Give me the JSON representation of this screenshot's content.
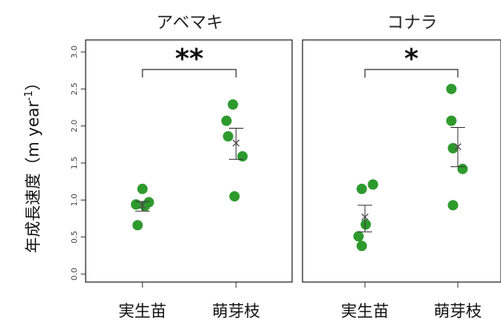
{
  "chart_data": [
    {
      "type": "scatter",
      "title": "アベマキ",
      "categories": [
        "実生苗",
        "萌芽枝"
      ],
      "ylabel_main": "年成長速度（m year",
      "ylabel_sup": "-1",
      "ylabel_close": "）",
      "ylim": [
        0,
        3.0
      ],
      "yticks": [
        0.0,
        0.5,
        1.0,
        1.5,
        2.0,
        2.5,
        3.0
      ],
      "ytick_labels": [
        "0.0",
        "0.5",
        "1.0",
        "1.5",
        "2.0",
        "2.5",
        "3.0"
      ],
      "point_color": "#2e9a2e",
      "points": [
        [
          1.15,
          0.97,
          0.94,
          0.92,
          0.66
        ],
        [
          2.29,
          2.07,
          1.86,
          1.59,
          1.05
        ]
      ],
      "mean": [
        0.93,
        1.77
      ],
      "error": [
        [
          0.85,
          0.98
        ],
        [
          1.55,
          1.97
        ]
      ],
      "significance": "**"
    },
    {
      "type": "scatter",
      "title": "コナラ",
      "categories": [
        "実生苗",
        "萌芽枝"
      ],
      "ylim": [
        0,
        3.0
      ],
      "point_color": "#2e9a2e",
      "points": [
        [
          1.21,
          1.15,
          0.67,
          0.51,
          0.38
        ],
        [
          2.5,
          2.07,
          1.7,
          1.42,
          0.93
        ]
      ],
      "mean": [
        0.77,
        1.72
      ],
      "error": [
        [
          0.57,
          0.93
        ],
        [
          1.45,
          1.98
        ]
      ],
      "significance": "*"
    }
  ]
}
